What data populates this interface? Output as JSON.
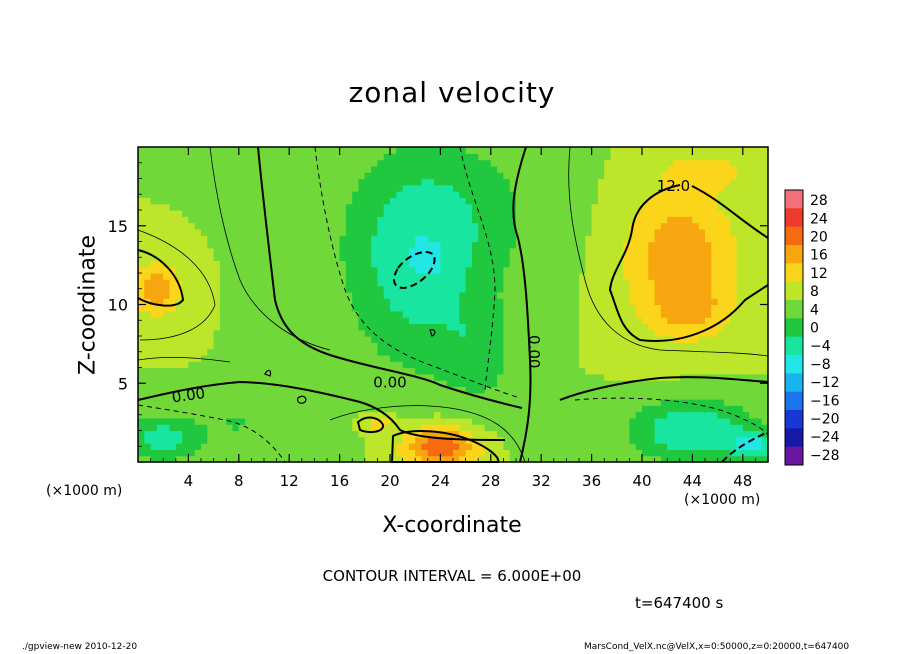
{
  "figure": {
    "title": "zonal velocity",
    "xlabel": "X-coordinate",
    "ylabel": "Z-coordinate",
    "x_unit_left": "(×1000 m)",
    "x_unit_right": "(×1000 m)",
    "contour_interval_text": "CONTOUR INTERVAL = 6.000E+00",
    "time_text": "t=647400 s",
    "footer_left": "./gpview-new  2010-12-20",
    "footer_right": "MarsCond_VelX.nc@VelX,x=0:50000,z=0:20000,t=647400"
  },
  "chart_data": {
    "type": "heatmap",
    "title": "zonal velocity",
    "xlabel": "X-coordinate",
    "ylabel": "Z-coordinate",
    "xlim": [
      0,
      50
    ],
    "ylim": [
      0,
      20
    ],
    "x_ticks": [
      4,
      8,
      12,
      16,
      20,
      24,
      28,
      32,
      36,
      40,
      44,
      48
    ],
    "y_ticks": [
      5,
      10,
      15
    ],
    "colorbar": {
      "levels": [
        28,
        24,
        20,
        16,
        12,
        8,
        4,
        0,
        -4,
        -8,
        -12,
        -16,
        -20,
        -24,
        -28
      ],
      "tick_labels": [
        "28",
        "24",
        "20",
        "16",
        "12",
        "8",
        "4",
        "0",
        "−4",
        "−8",
        "−12",
        "−16",
        "−20",
        "−24",
        "−28"
      ],
      "colors": [
        "#f2707a",
        "#ee3a2a",
        "#f66a10",
        "#f7a610",
        "#fbd51a",
        "#bde62a",
        "#70d838",
        "#20c840",
        "#18e6a0",
        "#22e6e6",
        "#18b4f0",
        "#1a74ea",
        "#1838d6",
        "#1818a8",
        "#6818a0"
      ]
    },
    "field": {
      "background_value": 4,
      "blobs": [
        {
          "x": 22,
          "z": 12,
          "sx": 5.5,
          "sz": 6.5,
          "a": -9
        },
        {
          "x": 27,
          "z": 7,
          "sx": 3,
          "sz": 3,
          "a": -5
        },
        {
          "x": 25,
          "z": 16,
          "sx": 8,
          "sz": 5,
          "a": -5
        },
        {
          "x": 23,
          "z": 12.8,
          "sx": 1,
          "sz": 0.8,
          "a": -4
        },
        {
          "x": 43,
          "z": 13,
          "sx": 4.5,
          "sz": 4.5,
          "a": 11
        },
        {
          "x": 44,
          "z": 9.5,
          "sx": 3,
          "sz": 1.5,
          "a": 5
        },
        {
          "x": 45,
          "z": 18.5,
          "sx": 3,
          "sz": 1,
          "a": 6
        },
        {
          "x": 1.5,
          "z": 11,
          "sx": 2,
          "sz": 1.8,
          "a": 10
        },
        {
          "x": 24,
          "z": 1,
          "sx": 3,
          "sz": 1.3,
          "a": 16
        },
        {
          "x": 19,
          "z": 2.5,
          "sx": 1.2,
          "sz": 0.6,
          "a": 7
        },
        {
          "x": 44,
          "z": 2,
          "sx": 5,
          "sz": 2,
          "a": -12
        },
        {
          "x": 49,
          "z": 1,
          "sx": 2,
          "sz": 1,
          "a": -10
        },
        {
          "x": 2,
          "z": 1.5,
          "sx": 3,
          "sz": 1.5,
          "a": -10
        },
        {
          "x": 8,
          "z": 2.5,
          "sx": 3,
          "sz": 1.5,
          "a": -4
        },
        {
          "x": 30,
          "z": 3,
          "sx": 3,
          "sz": 2,
          "a": -2
        }
      ]
    },
    "contour_labels": [
      {
        "text": "12.0",
        "x": 42.5,
        "z": 17.6,
        "angle": 0
      },
      {
        "text": "0.00",
        "x": 31.5,
        "z": 7,
        "angle": 90
      },
      {
        "text": "0.00",
        "x": 20,
        "z": 5.1,
        "angle": 0
      },
      {
        "text": "0.00",
        "x": 4,
        "z": 4.3,
        "angle": -8
      }
    ],
    "grid": false,
    "legend": "colorbar-right"
  }
}
